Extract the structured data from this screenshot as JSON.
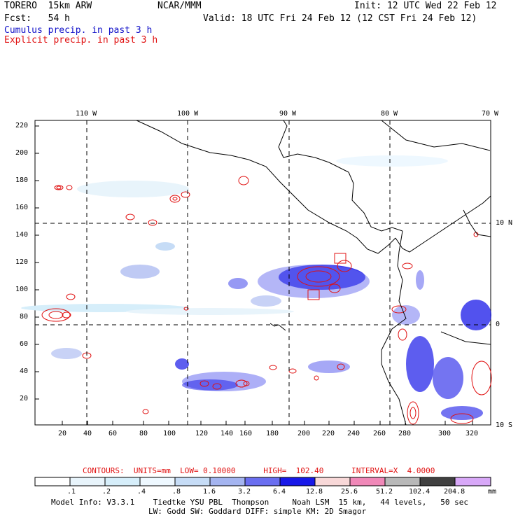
{
  "header": {
    "model_title": "TORERO  15km ARW",
    "center": "NCAR/MMM",
    "init": "Init: 12 UTC Wed 22 Feb 12",
    "fcst": "Fcst:   54 h",
    "valid": "Valid: 18 UTC Fri 24 Feb 12 (12 CST Fri 24 Feb 12)",
    "cumulus_label": "Cumulus precip. in past 3 h",
    "explicit_label": "Explicit precip. in past 3 h",
    "cumulus_color": "#1010c8",
    "explicit_color": "#e01010"
  },
  "map": {
    "top_longitude_labels": [
      "110 W",
      "100 W",
      "90 W",
      "80 W",
      "70 W"
    ],
    "right_latitude_labels": [
      "10 N",
      "0",
      "10 S"
    ],
    "x_ticks": [
      "20",
      "40",
      "60",
      "80",
      "100",
      "120",
      "140",
      "160",
      "180",
      "200",
      "220",
      "240",
      "260",
      "280",
      "300",
      "320"
    ],
    "y_ticks": [
      "20",
      "40",
      "60",
      "80",
      "100",
      "120",
      "140",
      "160",
      "180",
      "200",
      "220"
    ]
  },
  "footer": {
    "contours_line": "CONTOURS:  UNITS=mm  LOW= 0.10000      HIGH=  102.40      INTERVAL=X  4.0000",
    "colorbar_labels": [
      ".1",
      ".2",
      ".4",
      ".8",
      "1.6",
      "3.2",
      "6.4",
      "12.8",
      "25.6",
      "51.2",
      "102.4",
      "204.8"
    ],
    "colorbar_unit": "mm",
    "colorbar_colors": [
      "#ffffff",
      "#e8f4fb",
      "#d6eefa",
      "#eef8ff",
      "#c6dcf6",
      "#a4b4f0",
      "#6a6ef0",
      "#1818e8",
      "#f8d8d8",
      "#f088b8",
      "#b8b8b8",
      "#404040",
      "#d8a8f8"
    ],
    "model_info_1": "Model Info: V3.3.1    Tiedtke YSU PBL  Thompson     Noah LSM  15 km,   44 levels,   50 sec",
    "model_info_2": "LW: Godd SW: Goddard DIFF: simple KM: 2D Smagor"
  }
}
